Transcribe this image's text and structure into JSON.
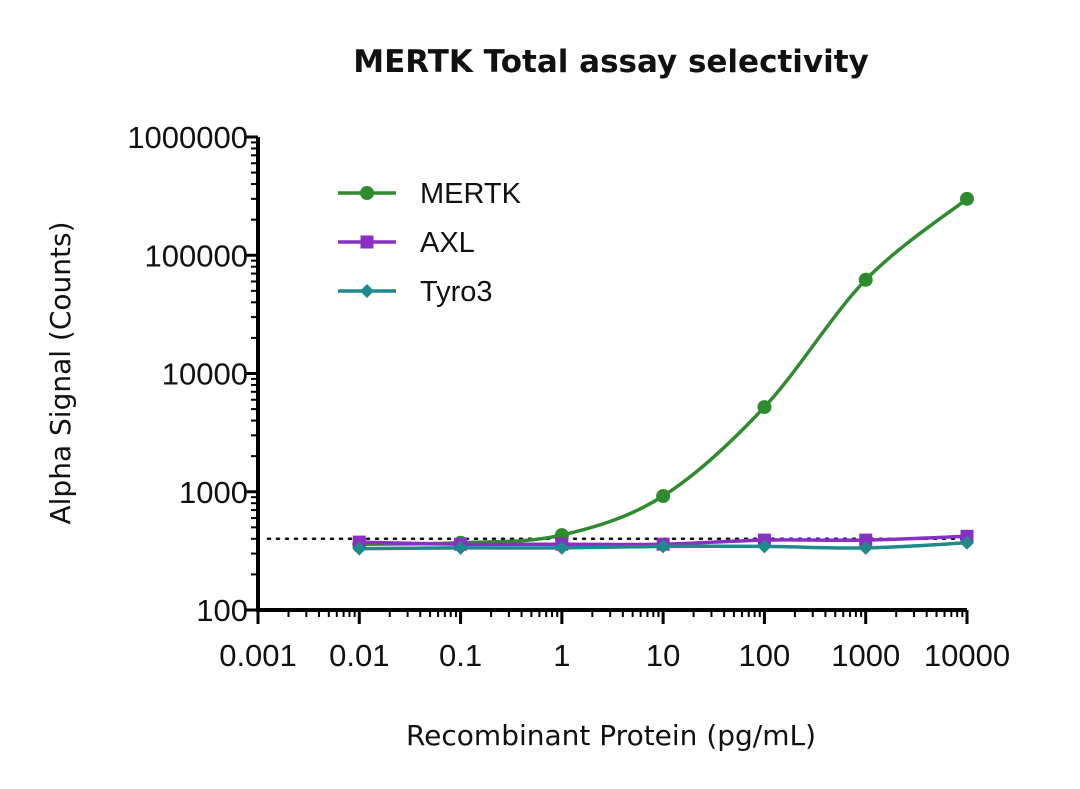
{
  "chart_data": {
    "type": "scatter",
    "title": "MERTK Total assay selectivity",
    "xlabel": "Recombinant Protein (pg/mL)",
    "ylabel": "Alpha Signal (Counts)",
    "xscale": "log",
    "yscale": "log",
    "xlim": [
      0.001,
      10000
    ],
    "ylim": [
      100,
      1000000
    ],
    "x_ticks": [
      "0.001",
      "0.01",
      "0.1",
      "1",
      "10",
      "100",
      "1000",
      "10000"
    ],
    "y_ticks": [
      "100",
      "1000",
      "10000",
      "100000",
      "1000000"
    ],
    "legend_position": "top-left",
    "grid": false,
    "baseline": {
      "y": 400,
      "style": "dotted"
    },
    "series": [
      {
        "name": "MERTK",
        "color": "#2e8b2e",
        "marker": "circle",
        "x": [
          0.01,
          0.1,
          1,
          10,
          100,
          1000,
          10000
        ],
        "y": [
          360,
          370,
          430,
          920,
          5200,
          62000,
          300000
        ]
      },
      {
        "name": "AXL",
        "color": "#8a2fc4",
        "marker": "square",
        "x": [
          0.01,
          0.1,
          1,
          10,
          100,
          1000,
          10000
        ],
        "y": [
          375,
          360,
          360,
          360,
          390,
          390,
          420
        ]
      },
      {
        "name": "Tyro3",
        "color": "#1f8a8a",
        "marker": "diamond",
        "x": [
          0.01,
          0.1,
          1,
          10,
          100,
          1000,
          10000
        ],
        "y": [
          330,
          335,
          335,
          345,
          345,
          335,
          370
        ]
      }
    ]
  }
}
